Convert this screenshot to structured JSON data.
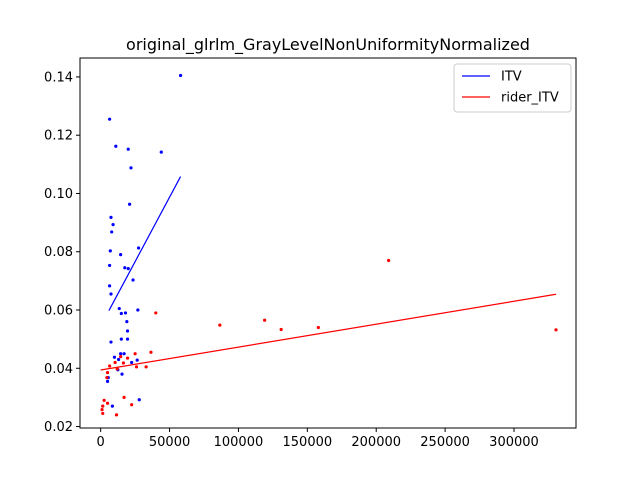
{
  "chart_data": {
    "type": "scatter",
    "title": "original_glrlm_GrayLevelNonUniformityNormalized",
    "xlabel": "",
    "ylabel": "",
    "xlim": [
      -15000,
      345000
    ],
    "ylim": [
      0.0195,
      0.1465
    ],
    "xticks": [
      0,
      50000,
      100000,
      150000,
      200000,
      250000,
      300000
    ],
    "xtick_labels": [
      "0",
      "50000",
      "100000",
      "150000",
      "200000",
      "250000",
      "300000"
    ],
    "yticks": [
      0.02,
      0.04,
      0.06,
      0.08,
      0.1,
      0.12,
      0.14
    ],
    "ytick_labels": [
      "0.02",
      "0.04",
      "0.06",
      "0.08",
      "0.10",
      "0.12",
      "0.14"
    ],
    "grid": false,
    "legend_position": "top-right",
    "series": [
      {
        "name": "ITV",
        "color": "#0000ff",
        "points": [
          [
            6500,
            0.1255
          ],
          [
            58000,
            0.1405
          ],
          [
            11000,
            0.1162
          ],
          [
            20000,
            0.1152
          ],
          [
            44000,
            0.1142
          ],
          [
            22000,
            0.1088
          ],
          [
            21000,
            0.0963
          ],
          [
            7500,
            0.0918
          ],
          [
            9000,
            0.0893
          ],
          [
            8000,
            0.0868
          ],
          [
            27500,
            0.0813
          ],
          [
            7000,
            0.0803
          ],
          [
            14500,
            0.079
          ],
          [
            6500,
            0.0753
          ],
          [
            17500,
            0.0745
          ],
          [
            20000,
            0.0742
          ],
          [
            23500,
            0.0703
          ],
          [
            6500,
            0.0683
          ],
          [
            7500,
            0.0655
          ],
          [
            13500,
            0.0605
          ],
          [
            15000,
            0.0588
          ],
          [
            27000,
            0.06
          ],
          [
            18000,
            0.059
          ],
          [
            19000,
            0.056
          ],
          [
            19500,
            0.0528
          ],
          [
            15000,
            0.05
          ],
          [
            7500,
            0.049
          ],
          [
            19500,
            0.05
          ],
          [
            17000,
            0.045
          ],
          [
            10000,
            0.0438
          ],
          [
            13000,
            0.043
          ],
          [
            14500,
            0.045
          ],
          [
            22500,
            0.042
          ],
          [
            26500,
            0.0428
          ],
          [
            12500,
            0.0395
          ],
          [
            15500,
            0.038
          ],
          [
            5500,
            0.0368
          ],
          [
            5000,
            0.0355
          ],
          [
            28000,
            0.0292
          ],
          [
            8500,
            0.027
          ]
        ],
        "fit_line": [
          [
            6000,
            0.0598
          ],
          [
            58000,
            0.1058
          ]
        ]
      },
      {
        "name": "rider_ITV",
        "color": "#ff0000",
        "points": [
          [
            330500,
            0.0532
          ],
          [
            209000,
            0.077
          ],
          [
            158000,
            0.054
          ],
          [
            131000,
            0.0533
          ],
          [
            119000,
            0.0565
          ],
          [
            86500,
            0.0548
          ],
          [
            40000,
            0.059
          ],
          [
            36500,
            0.0455
          ],
          [
            33000,
            0.0405
          ],
          [
            25000,
            0.045
          ],
          [
            19500,
            0.0435
          ],
          [
            16500,
            0.0418
          ],
          [
            14500,
            0.044
          ],
          [
            10500,
            0.042
          ],
          [
            12000,
            0.0398
          ],
          [
            6500,
            0.0408
          ],
          [
            5000,
            0.0385
          ],
          [
            4500,
            0.0368
          ],
          [
            2500,
            0.029
          ],
          [
            5000,
            0.028
          ],
          [
            1500,
            0.027
          ],
          [
            1000,
            0.0258
          ],
          [
            1500,
            0.0245
          ],
          [
            11500,
            0.024
          ],
          [
            17000,
            0.03
          ],
          [
            22500,
            0.0275
          ],
          [
            26000,
            0.0405
          ]
        ],
        "fit_line": [
          [
            0,
            0.0394
          ],
          [
            330500,
            0.0654
          ]
        ]
      }
    ]
  }
}
